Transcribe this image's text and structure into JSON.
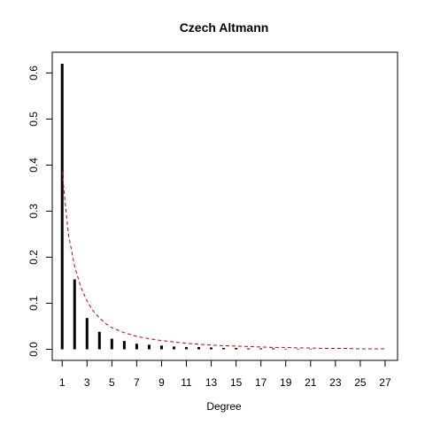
{
  "chart_data": {
    "type": "bar",
    "title": "Czech Altmann",
    "xlabel": "Degree",
    "ylabel": "",
    "xlim": [
      0.2,
      28.0
    ],
    "ylim": [
      -0.024,
      0.645
    ],
    "x_tick_values": [
      1,
      3,
      5,
      7,
      9,
      11,
      13,
      15,
      17,
      19,
      21,
      23,
      25,
      27
    ],
    "y_tick_values": [
      0.0,
      0.1,
      0.2,
      0.3,
      0.4,
      0.5,
      0.6
    ],
    "y_tick_labels": [
      "0.0",
      "0.1",
      "0.2",
      "0.3",
      "0.4",
      "0.5",
      "0.6"
    ],
    "series": [
      {
        "type": "bar",
        "color": "#000000",
        "x": [
          1,
          2,
          3,
          4,
          5,
          6,
          7,
          8,
          9,
          10,
          11,
          12,
          13,
          14,
          15,
          16,
          17,
          18,
          19,
          20,
          21
        ],
        "values": [
          0.62,
          0.152,
          0.068,
          0.038,
          0.023,
          0.018,
          0.012,
          0.01,
          0.008,
          0.006,
          0.005,
          0.005,
          0.004,
          0.003,
          0.003,
          0.002,
          0.002,
          0.002,
          0.001,
          0.001,
          0.001
        ]
      },
      {
        "type": "line",
        "style": "dashed",
        "color": "#cc0000",
        "x": [
          1,
          1.5,
          2,
          2.5,
          3,
          3.5,
          4,
          4.5,
          5,
          6,
          7,
          8,
          9,
          10,
          11,
          12,
          13,
          14,
          15,
          16,
          17,
          18,
          19,
          20,
          21,
          22,
          23,
          24,
          25,
          26,
          27
        ],
        "values": [
          0.385,
          0.25,
          0.18,
          0.135,
          0.105,
          0.083,
          0.068,
          0.056,
          0.047,
          0.036,
          0.028,
          0.023,
          0.019,
          0.016,
          0.013,
          0.011,
          0.009,
          0.008,
          0.007,
          0.006,
          0.005,
          0.004,
          0.004,
          0.003,
          0.003,
          0.002,
          0.002,
          0.002,
          0.001,
          0.001,
          0.001
        ]
      }
    ]
  }
}
